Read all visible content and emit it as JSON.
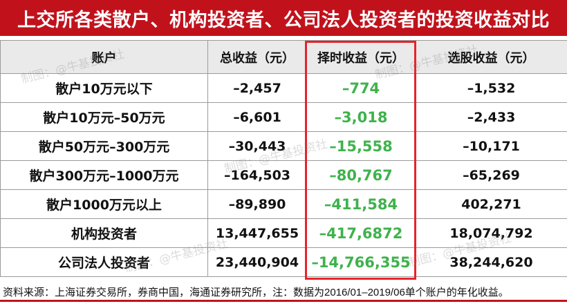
{
  "title": "上交所各类散户、机构投资者、公司法人投资者的投资收益对比",
  "table": {
    "headers": [
      "账户",
      "总收益（元）",
      "择时收益（元）",
      "选股收益（元）"
    ],
    "rows": [
      {
        "account": "散户10万元以下",
        "total": "–2,457",
        "timing": "–774",
        "selection": "–1,532"
      },
      {
        "account": "散户10万元–50万元",
        "total": "–6,601",
        "timing": "–3,018",
        "selection": "–2,433"
      },
      {
        "account": "散户50万元–300万元",
        "total": "–30,443",
        "timing": "–15,558",
        "selection": "–10,171"
      },
      {
        "account": "散户300万元–1000万元",
        "total": "–164,503",
        "timing": "–80,767",
        "selection": "–65,269"
      },
      {
        "account": "散户1000万元以上",
        "total": "–89,890",
        "timing": "–411,584",
        "selection": "402,271"
      },
      {
        "account": "机构投资者",
        "total": "13,447,655",
        "timing": "–417,6872",
        "selection": "18,074,792"
      },
      {
        "account": "公司法人投资者",
        "total": "23,440,904",
        "timing": "–14,766,355",
        "selection": "38,244,620"
      }
    ]
  },
  "watermark": "制图：@牛基投资社",
  "source": "资料来源：上海证券交易所，券商中国，海通证券研究所，注：数据为2016/01–2019/06单个账户的年化收益。",
  "colors": {
    "title_bg": "#c1121c",
    "highlight_border": "#e8222b",
    "timing_text": "#3fb24c",
    "header_bg": "#eaeaea"
  }
}
